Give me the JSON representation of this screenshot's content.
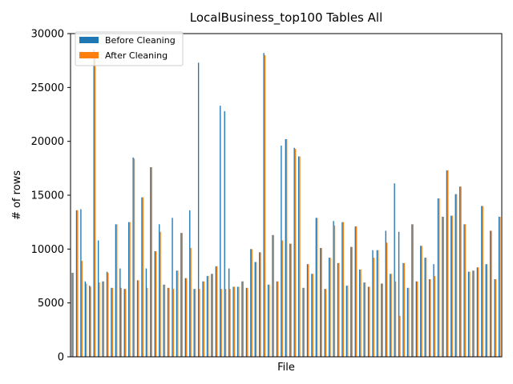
{
  "chart_data": {
    "type": "bar",
    "title": "LocalBusiness_top100 Tables All",
    "xlabel": "File",
    "ylabel": "# of rows",
    "ylim": [
      0,
      30000
    ],
    "yticks": [
      0,
      5000,
      10000,
      15000,
      20000,
      25000,
      30000
    ],
    "grid": false,
    "legend_position": "top-left",
    "series": [
      {
        "name": "Before Cleaning",
        "color": "#1f77b4",
        "values": [
          7800,
          13600,
          13700,
          7000,
          6600,
          28500,
          10800,
          7000,
          7900,
          6400,
          12300,
          8200,
          6300,
          12500,
          18500,
          7100,
          14800,
          8200,
          17600,
          9800,
          12300,
          6700,
          6400,
          12900,
          8000,
          11500,
          7300,
          13600,
          6300,
          27300,
          7000,
          7500,
          7700,
          8400,
          23300,
          22800,
          8200,
          6500,
          6500,
          7000,
          6400,
          10000,
          8800,
          9700,
          28200,
          6700,
          11300,
          7000,
          19600,
          20200,
          10500,
          19400,
          18600,
          6400,
          8600,
          7700,
          12900,
          10100,
          6300,
          9200,
          12600,
          8700,
          12500,
          6600,
          10200,
          12100,
          8100,
          6900,
          6500,
          9900,
          9900,
          6800,
          11700,
          7700,
          16100,
          11600,
          8700,
          6400,
          12300,
          7000,
          10300,
          9200,
          7200,
          8600,
          14700,
          13000,
          17300,
          13100,
          15100,
          15800,
          12300,
          7900,
          8000,
          8300,
          14000,
          8600,
          11700,
          7200,
          13000
        ]
      },
      {
        "name": "After Cleaning",
        "color": "#ff7f0e",
        "values": [
          7800,
          13600,
          8900,
          6800,
          6500,
          27900,
          6900,
          7000,
          7800,
          6400,
          12300,
          6400,
          6300,
          12500,
          18400,
          7100,
          14800,
          6400,
          17600,
          9800,
          11600,
          6700,
          6400,
          6300,
          8000,
          11500,
          7300,
          10100,
          6300,
          6300,
          7000,
          7500,
          7700,
          8400,
          6300,
          6300,
          6300,
          6500,
          6500,
          7000,
          6400,
          10000,
          8800,
          9700,
          28000,
          6700,
          11300,
          7000,
          10800,
          20200,
          10500,
          19300,
          18600,
          6400,
          8600,
          7700,
          12900,
          10100,
          6300,
          9200,
          12200,
          8700,
          12500,
          6600,
          10200,
          12100,
          8100,
          6900,
          6500,
          9200,
          9900,
          6800,
          10600,
          7700,
          7000,
          3800,
          8700,
          6400,
          12300,
          7000,
          10300,
          9200,
          7200,
          7500,
          14700,
          13000,
          17300,
          13100,
          15100,
          15800,
          12300,
          7900,
          8000,
          8300,
          14000,
          8600,
          11700,
          7200,
          13000
        ]
      }
    ]
  }
}
